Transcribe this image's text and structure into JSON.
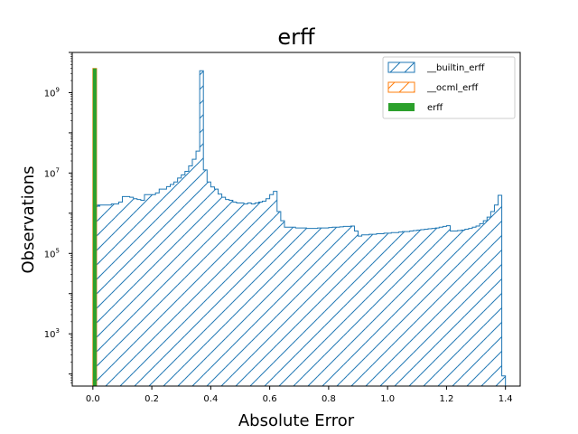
{
  "chart_data": {
    "type": "histogram",
    "title": "erff",
    "xlabel": "Absolute Error",
    "ylabel": "Observations",
    "xlim": [
      -0.07,
      1.45
    ],
    "ylog": true,
    "ylim_log10": [
      1.7,
      10.0
    ],
    "x_ticks": [
      {
        "value": 0.0,
        "label": "0.0"
      },
      {
        "value": 0.2,
        "label": "0.2"
      },
      {
        "value": 0.4,
        "label": "0.4"
      },
      {
        "value": 0.6,
        "label": "0.6"
      },
      {
        "value": 0.8,
        "label": "0.8"
      },
      {
        "value": 1.0,
        "label": "1.0"
      },
      {
        "value": 1.2,
        "label": "1.2"
      },
      {
        "value": 1.4,
        "label": "1.4"
      }
    ],
    "y_ticks": [
      {
        "exponent": 3,
        "base": "10",
        "sup": "3"
      },
      {
        "exponent": 5,
        "base": "10",
        "sup": "5"
      },
      {
        "exponent": 7,
        "base": "10",
        "sup": "7"
      },
      {
        "exponent": 9,
        "base": "10",
        "sup": "9"
      }
    ],
    "grid": false,
    "legend_position": "top-right",
    "series": [
      {
        "name": "__builtin_erff",
        "style": "step-hatch",
        "color": "#1f77b4",
        "bins": [
          [
            0.0125,
            1500000.0
          ],
          [
            0.0125,
            1600000.0
          ],
          [
            0.025,
            1600000.0
          ],
          [
            0.0375,
            1600000.0
          ],
          [
            0.05,
            1600000.0
          ],
          [
            0.0625,
            1700000.0
          ],
          [
            0.075,
            1700000.0
          ],
          [
            0.0875,
            1900000.0
          ],
          [
            0.1,
            2600000.0
          ],
          [
            0.1125,
            2600000.0
          ],
          [
            0.125,
            2500000.0
          ],
          [
            0.1375,
            2300000.0
          ],
          [
            0.15,
            2200000.0
          ],
          [
            0.1625,
            2100000.0
          ],
          [
            0.175,
            2900000.0
          ],
          [
            0.1875,
            2900000.0
          ],
          [
            0.2,
            2900000.0
          ],
          [
            0.2125,
            3200000.0
          ],
          [
            0.225,
            4000000.0
          ],
          [
            0.2375,
            4000000.0
          ],
          [
            0.25,
            4600000.0
          ],
          [
            0.2625,
            5200000.0
          ],
          [
            0.275,
            6000000.0
          ],
          [
            0.2875,
            7500000.0
          ],
          [
            0.3,
            9000000.0
          ],
          [
            0.3125,
            11000000.0
          ],
          [
            0.325,
            15000000.0
          ],
          [
            0.3375,
            22000000.0
          ],
          [
            0.35,
            35000000.0
          ],
          [
            0.3625,
            3500000000.0
          ],
          [
            0.375,
            12000000.0
          ],
          [
            0.3875,
            6000000.0
          ],
          [
            0.4,
            4500000.0
          ],
          [
            0.4125,
            4000000.0
          ],
          [
            0.425,
            3000000.0
          ],
          [
            0.4375,
            2500000.0
          ],
          [
            0.45,
            2200000.0
          ],
          [
            0.4625,
            2100000.0
          ],
          [
            0.475,
            1900000.0
          ],
          [
            0.4875,
            1800000.0
          ],
          [
            0.5,
            1800000.0
          ],
          [
            0.5125,
            1700000.0
          ],
          [
            0.525,
            1800000.0
          ],
          [
            0.5375,
            1700000.0
          ],
          [
            0.55,
            1800000.0
          ],
          [
            0.5625,
            1900000.0
          ],
          [
            0.575,
            2000000.0
          ],
          [
            0.5875,
            2300000.0
          ],
          [
            0.6,
            2900000.0
          ],
          [
            0.6125,
            3500000.0
          ],
          [
            0.625,
            1100000.0
          ],
          [
            0.6375,
            650000.0
          ],
          [
            0.65,
            450000.0
          ],
          [
            0.6625,
            450000.0
          ],
          [
            0.675,
            450000.0
          ],
          [
            0.6875,
            430000.0
          ],
          [
            0.7,
            430000.0
          ],
          [
            0.7125,
            430000.0
          ],
          [
            0.725,
            420000.0
          ],
          [
            0.7375,
            420000.0
          ],
          [
            0.75,
            420000.0
          ],
          [
            0.7625,
            430000.0
          ],
          [
            0.775,
            430000.0
          ],
          [
            0.7875,
            430000.0
          ],
          [
            0.8,
            440000.0
          ],
          [
            0.8125,
            450000.0
          ],
          [
            0.825,
            450000.0
          ],
          [
            0.8375,
            460000.0
          ],
          [
            0.85,
            470000.0
          ],
          [
            0.8625,
            470000.0
          ],
          [
            0.875,
            480000.0
          ],
          [
            0.8875,
            360000.0
          ],
          [
            0.9,
            270000.0
          ],
          [
            0.9125,
            290000.0
          ],
          [
            0.925,
            290000.0
          ],
          [
            0.9375,
            300000.0
          ],
          [
            0.95,
            300000.0
          ],
          [
            0.9625,
            310000.0
          ],
          [
            0.975,
            310000.0
          ],
          [
            0.9875,
            320000.0
          ],
          [
            1.0,
            320000.0
          ],
          [
            1.0125,
            330000.0
          ],
          [
            1.025,
            330000.0
          ],
          [
            1.0375,
            340000.0
          ],
          [
            1.05,
            350000.0
          ],
          [
            1.0625,
            350000.0
          ],
          [
            1.075,
            360000.0
          ],
          [
            1.0875,
            370000.0
          ],
          [
            1.1,
            380000.0
          ],
          [
            1.1125,
            390000.0
          ],
          [
            1.125,
            400000.0
          ],
          [
            1.1375,
            410000.0
          ],
          [
            1.15,
            420000.0
          ],
          [
            1.1625,
            430000.0
          ],
          [
            1.175,
            450000.0
          ],
          [
            1.1875,
            470000.0
          ],
          [
            1.2,
            490000.0
          ],
          [
            1.2125,
            360000.0
          ],
          [
            1.225,
            360000.0
          ],
          [
            1.2375,
            370000.0
          ],
          [
            1.25,
            380000.0
          ],
          [
            1.2625,
            400000.0
          ],
          [
            1.275,
            420000.0
          ],
          [
            1.2875,
            450000.0
          ],
          [
            1.3,
            480000.0
          ],
          [
            1.3125,
            550000.0
          ],
          [
            1.325,
            650000.0
          ],
          [
            1.3375,
            800000.0
          ],
          [
            1.35,
            1100000.0
          ],
          [
            1.3625,
            1600000.0
          ],
          [
            1.375,
            2800000.0
          ],
          [
            1.3875,
            90
          ]
        ]
      },
      {
        "name": "__ocml_erff",
        "style": "step-hatch",
        "color": "#ff7f0e",
        "bins": [
          [
            0.0,
            4000000000.0
          ]
        ]
      },
      {
        "name": "erff",
        "style": "filled",
        "color": "#2ca02c",
        "bins": [
          [
            0.0,
            4000000000.0
          ]
        ]
      }
    ]
  }
}
